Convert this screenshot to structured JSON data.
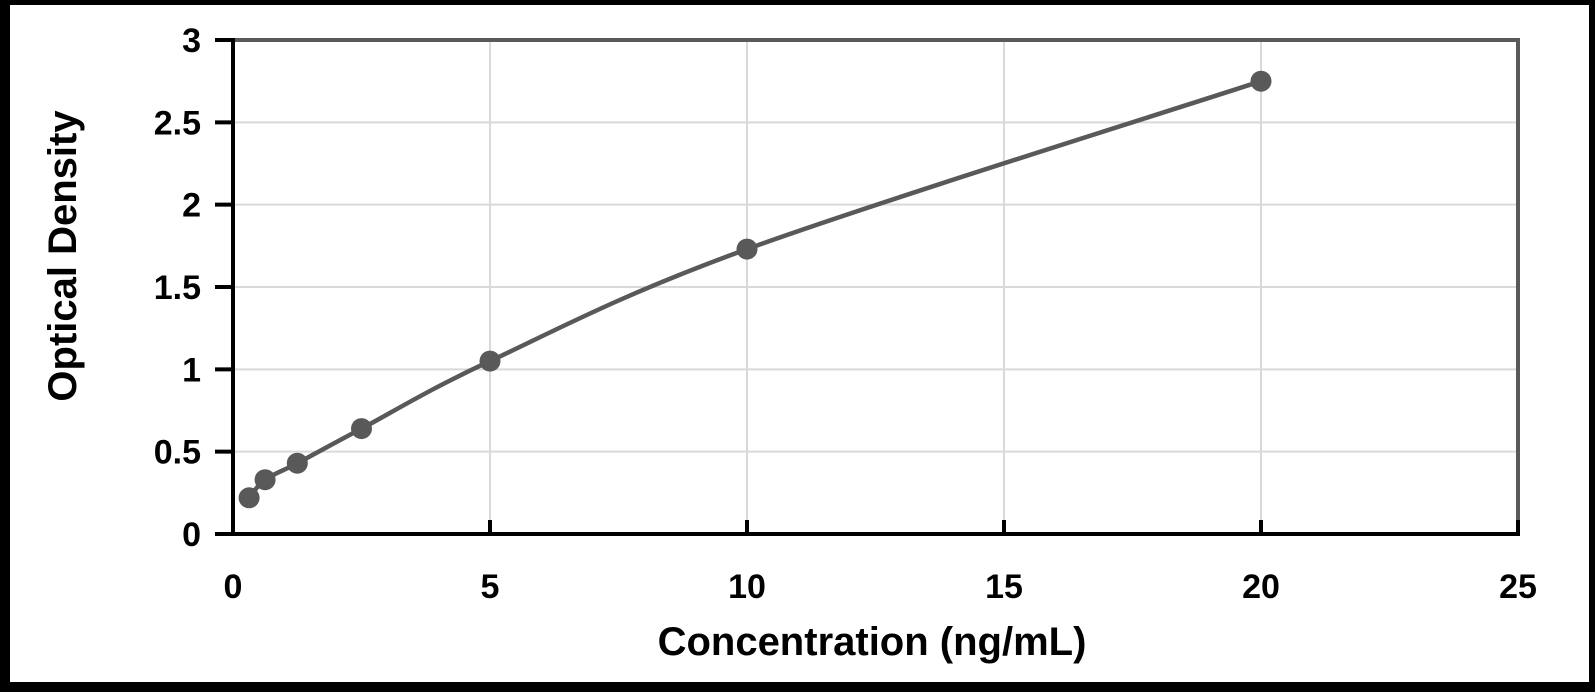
{
  "chart_data": {
    "type": "line",
    "title": "",
    "xlabel": "Concentration (ng/mL)",
    "ylabel": "Optical Density",
    "x": [
      0.313,
      0.625,
      1.25,
      2.5,
      5,
      10,
      20
    ],
    "y": [
      0.22,
      0.33,
      0.43,
      0.64,
      1.05,
      1.73,
      2.75
    ],
    "xlim": [
      0,
      25
    ],
    "ylim": [
      0,
      3
    ],
    "x_tick_labels": [
      "0",
      "5",
      "10",
      "15",
      "20",
      "25"
    ],
    "y_tick_labels": [
      "0",
      "0.5",
      "1",
      "1.5",
      "2",
      "2.5",
      "3"
    ],
    "grid": true,
    "legend": false,
    "line_smooth": true,
    "marker": "circle",
    "colors": {
      "line": "#595959",
      "marker": "#595959",
      "gridline": "#d9d9d9",
      "axis": "#000000",
      "plot_border": "#595959",
      "frame": "#000000",
      "background": "#ffffff"
    }
  }
}
